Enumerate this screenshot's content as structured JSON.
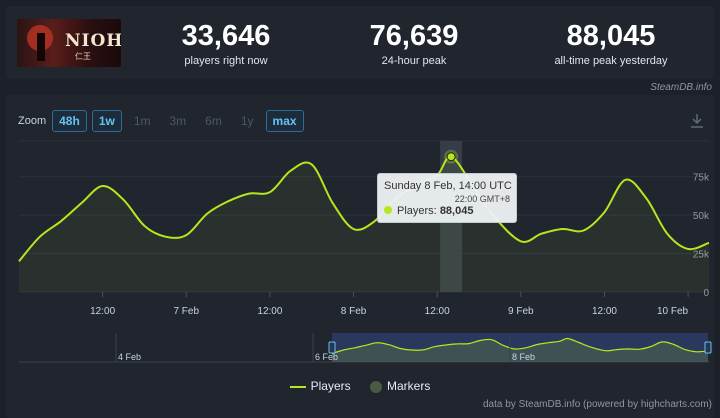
{
  "game": {
    "logo_text": "NIOH",
    "logo_subtext": "仁王"
  },
  "stats": [
    {
      "value": "33,646",
      "label": "players right now"
    },
    {
      "value": "76,639",
      "label": "24-hour peak"
    },
    {
      "value": "88,045",
      "label": "all-time peak yesterday"
    }
  ],
  "credit_top": "SteamDB.info",
  "zoom": {
    "label": "Zoom",
    "buttons": [
      {
        "label": "48h",
        "state": "active"
      },
      {
        "label": "1w",
        "state": "active"
      },
      {
        "label": "1m",
        "state": "disabled"
      },
      {
        "label": "3m",
        "state": "disabled"
      },
      {
        "label": "6m",
        "state": "disabled"
      },
      {
        "label": "1y",
        "state": "disabled"
      },
      {
        "label": "max",
        "state": "active"
      }
    ]
  },
  "tooltip": {
    "date": "Sunday 8 Feb, 14:00 UTC",
    "local_time": "22:00 GMT+8",
    "series_label": "Players:",
    "value": "88,045"
  },
  "legend": {
    "players": "Players",
    "markers": "Markers"
  },
  "credit_bottom": "data by SteamDB.info (powered by highcharts.com)",
  "navigator": {
    "labels": [
      "4 Feb",
      "6 Feb",
      "8 Feb"
    ]
  },
  "colors": {
    "line": "#b6e71e",
    "accent": "#66c0f4",
    "background": "#1b2029"
  },
  "chart_data": {
    "type": "line",
    "x_tick_labels": [
      "12:00",
      "7 Feb",
      "12:00",
      "8 Feb",
      "12:00",
      "9 Feb",
      "12:00",
      "10 Feb"
    ],
    "y_tick_labels": [
      "0",
      "25k",
      "50k",
      "75k"
    ],
    "ylim": [
      0,
      95000
    ],
    "series": [
      {
        "name": "Players",
        "points": [
          [
            "6 Feb 00:00",
            20000
          ],
          [
            "6 Feb 03:00",
            36000
          ],
          [
            "6 Feb 06:00",
            46000
          ],
          [
            "6 Feb 09:00",
            58000
          ],
          [
            "6 Feb 12:00",
            69000
          ],
          [
            "6 Feb 15:00",
            60000
          ],
          [
            "6 Feb 18:00",
            43000
          ],
          [
            "6 Feb 21:00",
            36000
          ],
          [
            "7 Feb 00:00",
            37000
          ],
          [
            "7 Feb 03:00",
            51000
          ],
          [
            "7 Feb 06:00",
            59000
          ],
          [
            "7 Feb 09:00",
            64000
          ],
          [
            "7 Feb 12:00",
            65000
          ],
          [
            "7 Feb 15:00",
            79000
          ],
          [
            "7 Feb 18:00",
            83000
          ],
          [
            "7 Feb 21:00",
            58000
          ],
          [
            "8 Feb 00:00",
            41000
          ],
          [
            "8 Feb 03:00",
            46000
          ],
          [
            "8 Feb 06:00",
            61000
          ],
          [
            "8 Feb 09:00",
            69000
          ],
          [
            "8 Feb 12:00",
            76000
          ],
          [
            "8 Feb 14:00",
            88045
          ],
          [
            "8 Feb 17:00",
            70000
          ],
          [
            "8 Feb 20:00",
            50000
          ],
          [
            "9 Feb 00:00",
            33000
          ],
          [
            "9 Feb 03:00",
            38000
          ],
          [
            "9 Feb 06:00",
            41000
          ],
          [
            "9 Feb 09:00",
            40000
          ],
          [
            "9 Feb 12:00",
            52000
          ],
          [
            "9 Feb 15:00",
            73000
          ],
          [
            "9 Feb 18:00",
            61000
          ],
          [
            "9 Feb 21:00",
            38000
          ],
          [
            "10 Feb 00:00",
            28000
          ],
          [
            "10 Feb 03:00",
            32000
          ]
        ]
      }
    ],
    "highlighted_point": {
      "x": "8 Feb 14:00",
      "y": 88045
    },
    "grid": true,
    "legend_position": "bottom-center"
  }
}
